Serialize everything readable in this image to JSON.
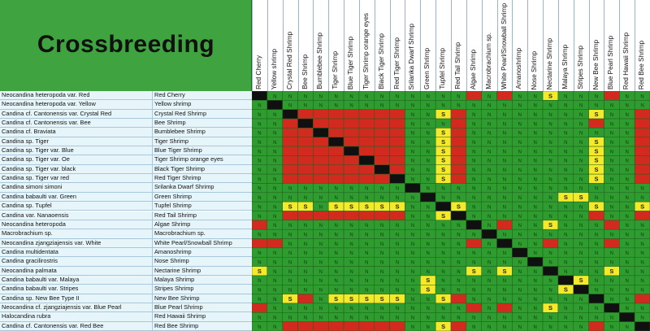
{
  "title": "Crossbreeding",
  "columns": [
    "Red Cherry",
    "Yellow shrimp",
    "Crystal Red Shrimp",
    "Bee Shrimp",
    "Bumblebee Shrimp",
    "Tiger Shrimp",
    "Blue Tiger Shrimp",
    "Tiger Shrimp orange eyes",
    "Black Tiger Shrimp",
    "Red Tiger Shrimp",
    "Srilanka Dwarf Shrimp",
    "Green Shrimp",
    "Tupfel Shrimp",
    "Red Tail Shrimp",
    "Algae Shrimp",
    "Macrobrachium sp.",
    "White Pearl/Snowball Shrimp",
    "Amanoshrimp",
    "Nose Shrimp",
    "Nectarine Shrimp",
    "Malaya Shrimp",
    "Stripes Shrimp",
    "New Bee Shrimp",
    "Blue Pearl Shrimp",
    "Red Hawaii Shrimp",
    "Red Bee Shrimp"
  ],
  "rows": [
    {
      "sci": "Neocandina heteropoda var. Red",
      "common": "Red Cherry"
    },
    {
      "sci": "Neocandina heteropoda var. Yellow",
      "common": "Yellow shrimp"
    },
    {
      "sci": "Candina cf. Cantonensis var. Crystal Red",
      "common": "Crystal Red Shrimp"
    },
    {
      "sci": "Candina cf. Cantonensis var. Bee",
      "common": "Bee Shrimp"
    },
    {
      "sci": "Candina cf. Braviata",
      "common": "Bumblebee Shrimp"
    },
    {
      "sci": "Candina sp. Tiger",
      "common": "Tiger Shrimp"
    },
    {
      "sci": "Candina sp. Tiger var. Blue",
      "common": "Blue Tiger Shrimp"
    },
    {
      "sci": "Candina sp. Tiger var. Oe",
      "common": "Tiger Shrimp orange eyes"
    },
    {
      "sci": "Candina sp. Tiger var. black",
      "common": "Black Tiger Shrimp"
    },
    {
      "sci": "Candina sp. Tiger var red",
      "common": "Red Tiger Shrimp"
    },
    {
      "sci": "Candina simoni simoni",
      "common": "Srilanka Dwarf Shrimp"
    },
    {
      "sci": "Candina babaulti var. Green",
      "common": "Green Shrimp"
    },
    {
      "sci": "Candina sp. Tupfel",
      "common": "Tupfel Shrimp"
    },
    {
      "sci": "Candina var. Nanaoensis",
      "common": "Red Tail Shrimp"
    },
    {
      "sci": "Neocandina heteropoda",
      "common": "Algae Shrimp"
    },
    {
      "sci": "Macrobrachium sp.",
      "common": "Macrobrachium sp."
    },
    {
      "sci": "Neocandina zjangziajensis var. White",
      "common": "White Pearl/Snowball Shrimp"
    },
    {
      "sci": "Candina multidentata",
      "common": "Amanoshrimp"
    },
    {
      "sci": "Candina gracilirostris",
      "common": "Nose Shrimp"
    },
    {
      "sci": "Neocandina palmata",
      "common": "Nectarine Shrimp"
    },
    {
      "sci": "Candina babaulti var. Malaya",
      "common": "Malaya Shrimp"
    },
    {
      "sci": "Candina babaulti var. Stripes",
      "common": "Stripes Shrimp"
    },
    {
      "sci": "Candina sp. New Bee Type II",
      "common": "New Bee Shrimp"
    },
    {
      "sci": "Neocandina cf. zjangziajensis var. Blue Pearl",
      "common": "Blue Pearl Shrimp"
    },
    {
      "sci": "Halocandina rubra",
      "common": "Red Hawaii Shrimp"
    },
    {
      "sci": "Candina cf. Cantonensis var. Red Bee",
      "common": "Red Bee Shrimp"
    }
  ],
  "matrix": [
    "XNNNNNNNNNNNNNRNRNNSNNNRNN",
    "NXNNNNNNNNNNNNNNNNNNNNNNNN",
    "NNXRRRRRRRNNSRNNNNNNNNSNNR",
    "NNRXRRRRRRNNNRNNNNNNNNRNNR",
    "NNRRXRRRRRNNSRNNNNNNNNNNNR",
    "NNRRRXRRRRNNSRNNNNNNNNSNNR",
    "NNRRRRXRRRNNSRNNNNNNNNSNNR",
    "NNRRRRRXRRNNSRNNNNNNNNSNNR",
    "NNRRRRRRXRNNSRNNNNNNNNSNNR",
    "NNRRRRRRRXNNSRNNNNNNNNSNNR",
    "NNNNNNNNNNXNNNNNNNNNNNNNNN",
    "NNNNNNNNNNNXNNNNNNNNSSNNNN",
    "NNSSNSSSSSNNXSNNNNNNNNSNNS",
    "NNRRRRRRRRNNSXNNNNNNNNRNNR",
    "RNNNNNNNNNNNNNXNRNNSNNNRNN",
    "NNNNNNNNNNNNNNNXNNNNNNNNNN",
    "RRNNNNNNNNNNNNRNXNNRNNNRNN",
    "NNNNNNNNNNNNNNNNNXNNNNNNNN",
    "NNNNNNNNNNNNNNNNNNXNNNNNNN",
    "SNNNNNNNNNNNNNSNSNNXNNNSNN",
    "NNNNNNNNNNNSNNNNNNNNXSNNNN",
    "NNNNNNNNNNNSNNNNNNNNSXNNNN",
    "NNSRNSSSSSNNSRNNNNNNNNXNNR",
    "RNNNNNNNNNNNNNRNRNNSNNNXNN",
    "NNNNNNNNNNNNNNNNNNNNNNNNXN",
    "NNRRRRRRRRNNSRNNNNNNNNRNNX"
  ],
  "legend": {
    "N": "N",
    "S": "S"
  },
  "colors": {
    "N": "#2f9c2f",
    "R": "#d32a1f",
    "S": "#f4ea2a",
    "X": "#101010",
    "title_bg": "#3fa33f"
  }
}
